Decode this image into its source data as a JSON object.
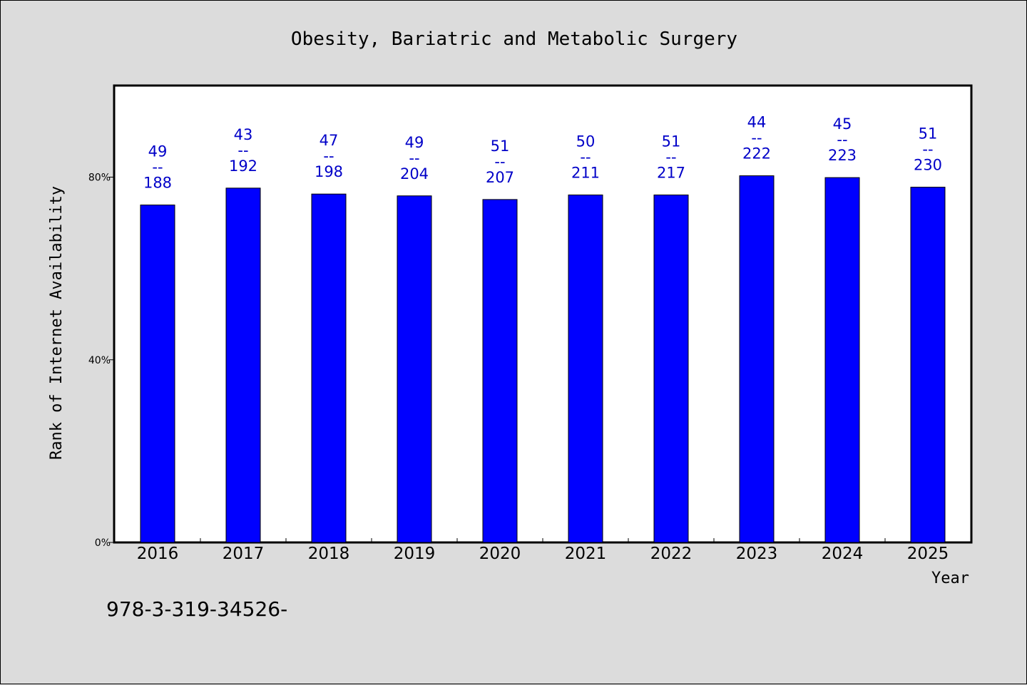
{
  "chart_data": {
    "type": "bar",
    "title": "Obesity, Bariatric and Metabolic Surgery",
    "xlabel": "Year",
    "ylabel": "Rank of Internet Availability",
    "ylim": [
      0,
      100
    ],
    "y_ticks": [
      0,
      40,
      80
    ],
    "y_tick_labels": [
      "0%",
      "40%",
      "80%"
    ],
    "categories": [
      "2016",
      "2017",
      "2018",
      "2019",
      "2020",
      "2021",
      "2022",
      "2023",
      "2024",
      "2025"
    ],
    "values": [
      73.9,
      77.6,
      76.3,
      75.9,
      75.1,
      76.1,
      76.1,
      80.3,
      79.9,
      77.8
    ],
    "labels": [
      {
        "top": "49",
        "mid": "--",
        "bottom": "188"
      },
      {
        "top": "43",
        "mid": "--",
        "bottom": "192"
      },
      {
        "top": "47",
        "mid": "--",
        "bottom": "198"
      },
      {
        "top": "49",
        "mid": "--",
        "bottom": "204"
      },
      {
        "top": "51",
        "mid": "--",
        "bottom": "207"
      },
      {
        "top": "50",
        "mid": "--",
        "bottom": "211"
      },
      {
        "top": "51",
        "mid": "--",
        "bottom": "217"
      },
      {
        "top": "44",
        "mid": "--",
        "bottom": "222"
      },
      {
        "top": "45",
        "mid": "--",
        "bottom": "223"
      },
      {
        "top": "51",
        "mid": "--",
        "bottom": "230"
      }
    ],
    "bar_color": "#0000ff",
    "label_color": "#0000c8",
    "grid": false
  },
  "footer": {
    "text": "978-3-319-34526-"
  }
}
